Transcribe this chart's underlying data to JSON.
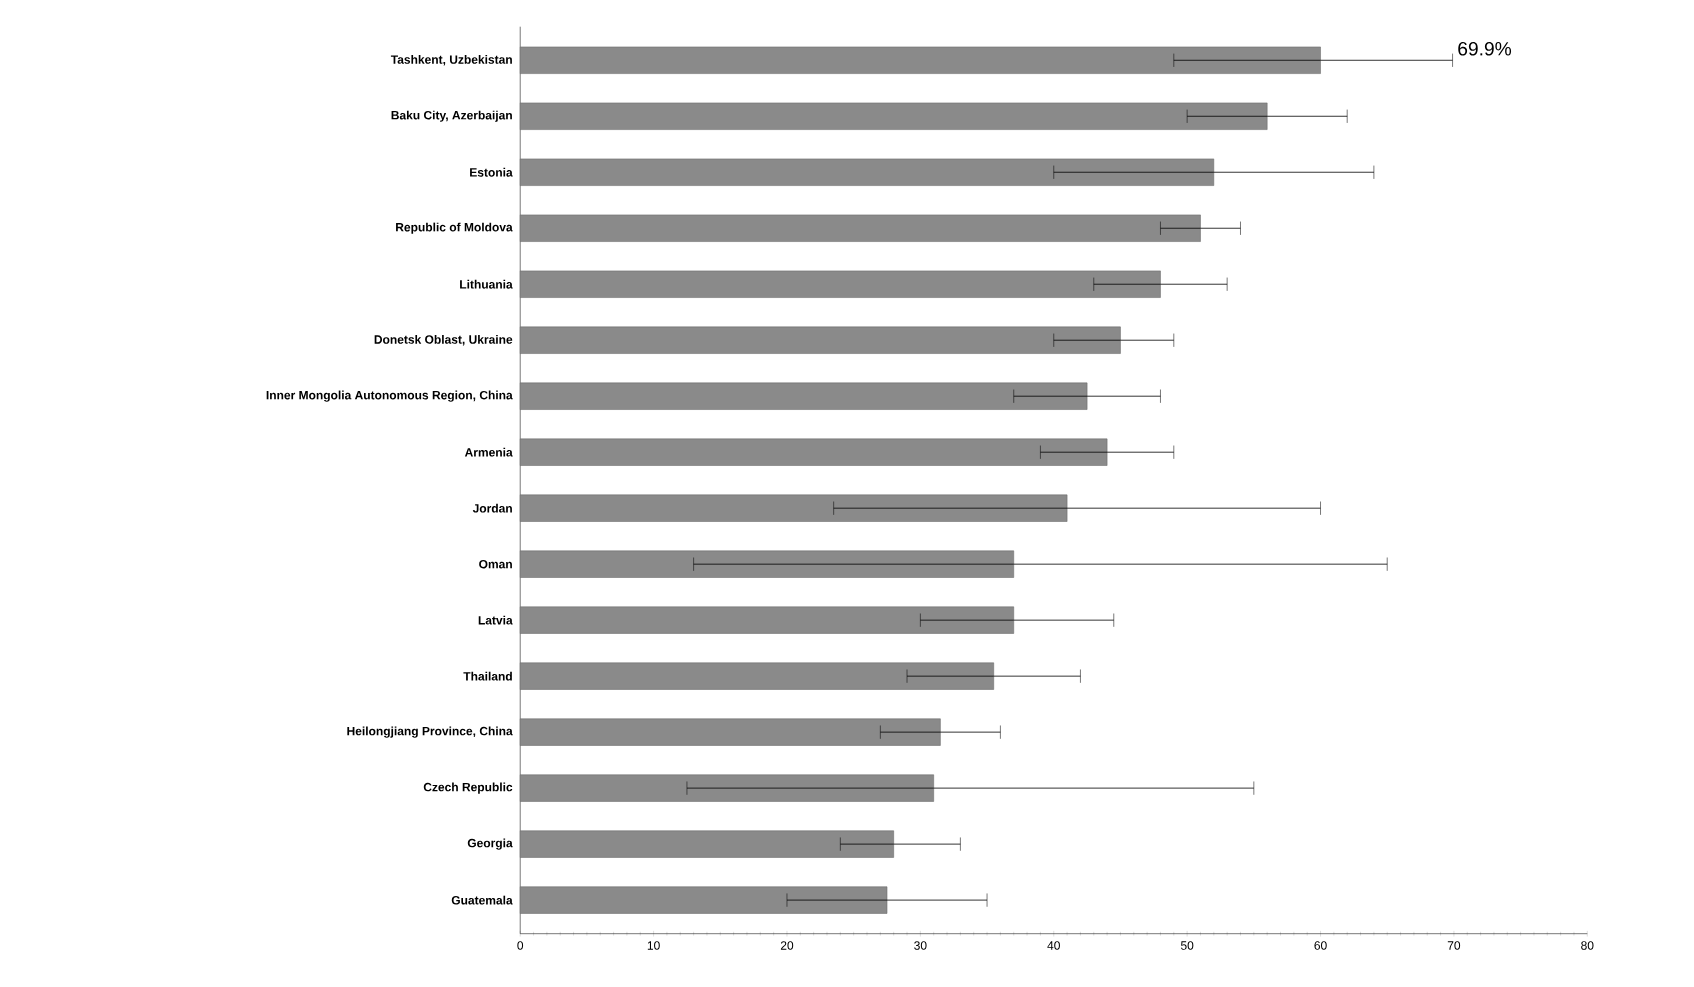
{
  "chart_data": {
    "type": "bar",
    "orientation": "horizontal",
    "categories": [
      "Tashkent, Uzbekistan",
      "Baku City, Azerbaijan",
      "Estonia",
      "Republic of Moldova",
      "Lithuania",
      "Donetsk Oblast, Ukraine",
      "Inner Mongolia Autonomous Region, China",
      "Armenia",
      "Jordan",
      "Oman",
      "Latvia",
      "Thailand",
      "Heilongjiang Province, China",
      "Czech Republic",
      "Georgia",
      "Guatemala"
    ],
    "values": [
      60,
      56,
      52,
      51,
      48,
      45,
      42.5,
      44,
      41,
      37,
      37,
      35.5,
      31.5,
      31,
      28,
      27.5
    ],
    "errors": [
      [
        49,
        69.9
      ],
      [
        50,
        62
      ],
      [
        40,
        64
      ],
      [
        48,
        54
      ],
      [
        43,
        53
      ],
      [
        40,
        49
      ],
      [
        37,
        48
      ],
      [
        39,
        49
      ],
      [
        23.5,
        60
      ],
      [
        13,
        65
      ],
      [
        30,
        44.5
      ],
      [
        29,
        42
      ],
      [
        27,
        36
      ],
      [
        12.5,
        55
      ],
      [
        24,
        33
      ],
      [
        20,
        35
      ]
    ],
    "color": "#8a8a8a",
    "xlim": [
      0,
      80
    ],
    "xticks": [
      0,
      10,
      20,
      30,
      40,
      50,
      60,
      70,
      80
    ],
    "grid": false,
    "annotations": [
      {
        "text": "69.9%",
        "x": 69.9,
        "y": "Tashkent, Uzbekistan"
      }
    ]
  }
}
